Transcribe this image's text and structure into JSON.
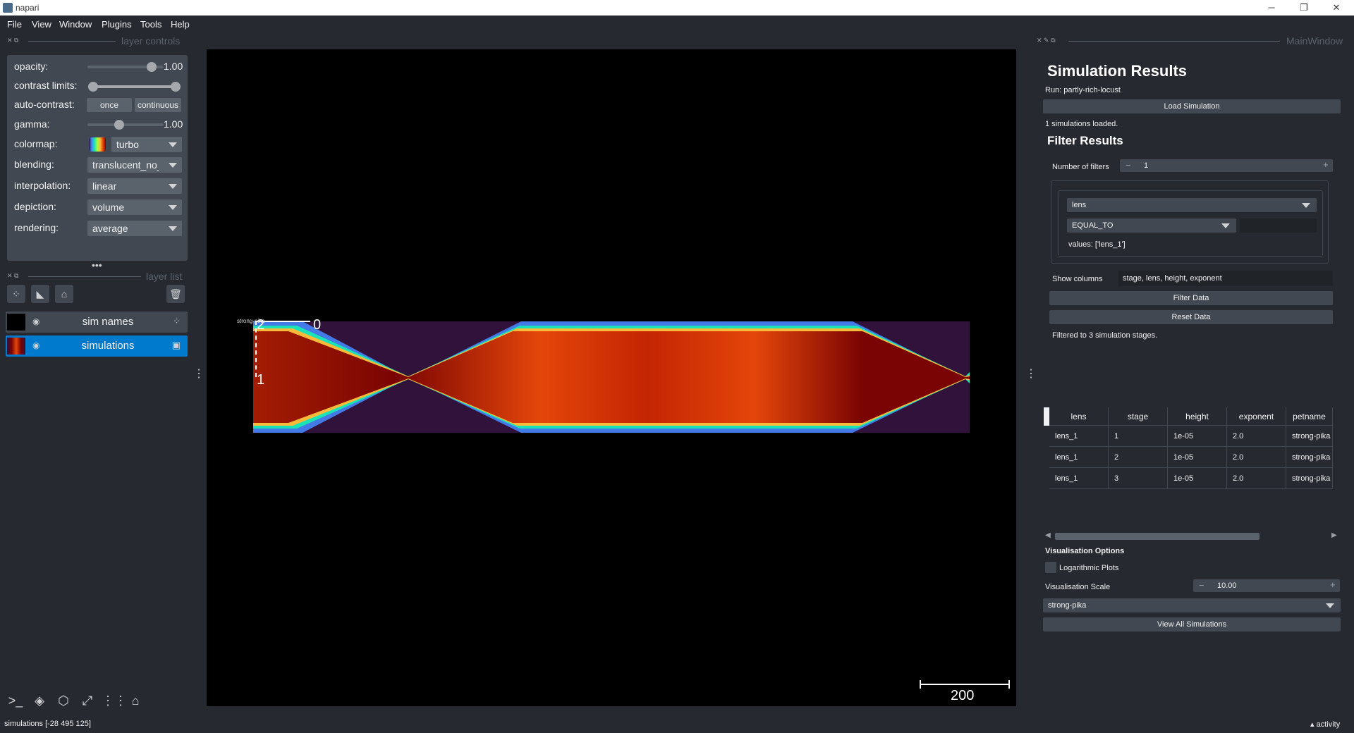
{
  "window": {
    "title": "napari",
    "minimize": "─",
    "restore": "❐",
    "close": "✕"
  },
  "menu": [
    "File",
    "View",
    "Window",
    "Plugins",
    "Tools",
    "Help"
  ],
  "layer_controls": {
    "dock_title": "layer controls",
    "opacity": {
      "label": "opacity:",
      "value": "1.00",
      "level": 1.0
    },
    "contrast": {
      "label": "contrast limits:"
    },
    "auto_contrast": {
      "label": "auto-contrast:",
      "once": "once",
      "continuous": "continuous"
    },
    "gamma": {
      "label": "gamma:",
      "value": "1.00",
      "level": 0.5
    },
    "colormap": {
      "label": "colormap:",
      "value": "turbo"
    },
    "blending": {
      "label": "blending:",
      "value": "translucent_no_depth"
    },
    "interpolation": {
      "label": "interpolation:",
      "value": "linear"
    },
    "depiction": {
      "label": "depiction:",
      "value": "volume"
    },
    "rendering": {
      "label": "rendering:",
      "value": "average"
    }
  },
  "layer_list": {
    "dock_title": "layer list",
    "layers": [
      {
        "name": "sim names",
        "type_icon": "points-icon",
        "selected": false
      },
      {
        "name": "simulations",
        "type_icon": "image-icon",
        "selected": true
      }
    ]
  },
  "canvas": {
    "axis_x": "0",
    "axis_y": "1",
    "axis_z": "2",
    "point_label": "strong-pika",
    "scale_bar": "200"
  },
  "right_panel": {
    "dock_title": "MainWindow",
    "title": "Simulation Results",
    "run": "Run: partly-rich-locust",
    "load_button": "Load Simulation",
    "loaded_text": "1 simulations loaded.",
    "filter_title": "Filter Results",
    "num_filters_label": "Number of filters",
    "num_filters_value": "1",
    "filter": {
      "column": "lens",
      "operator": "EQUAL_TO",
      "values": "values: ['lens_1']"
    },
    "show_columns_label": "Show columns",
    "show_columns_value": "stage, lens, height, exponent",
    "filter_button": "Filter Data",
    "reset_button": "Reset Data",
    "filtered_text": "Filtered to 3 simulation stages.",
    "table": {
      "headers": [
        "lens",
        "stage",
        "height",
        "exponent",
        "petname"
      ],
      "rows": [
        [
          "lens_1",
          "1",
          "1e-05",
          "2.0",
          "strong-pika"
        ],
        [
          "lens_1",
          "2",
          "1e-05",
          "2.0",
          "strong-pika"
        ],
        [
          "lens_1",
          "3",
          "1e-05",
          "2.0",
          "strong-pika"
        ]
      ]
    },
    "vis_title": "Visualisation Options",
    "log_plots": "Logarithmic Plots",
    "vis_scale_label": "Visualisation Scale",
    "vis_scale_value": "10.00",
    "sim_select": "strong-pika",
    "view_all_button": "View All Simulations"
  },
  "status": {
    "text": "simulations [-28 495 125]",
    "activity": "activity"
  }
}
